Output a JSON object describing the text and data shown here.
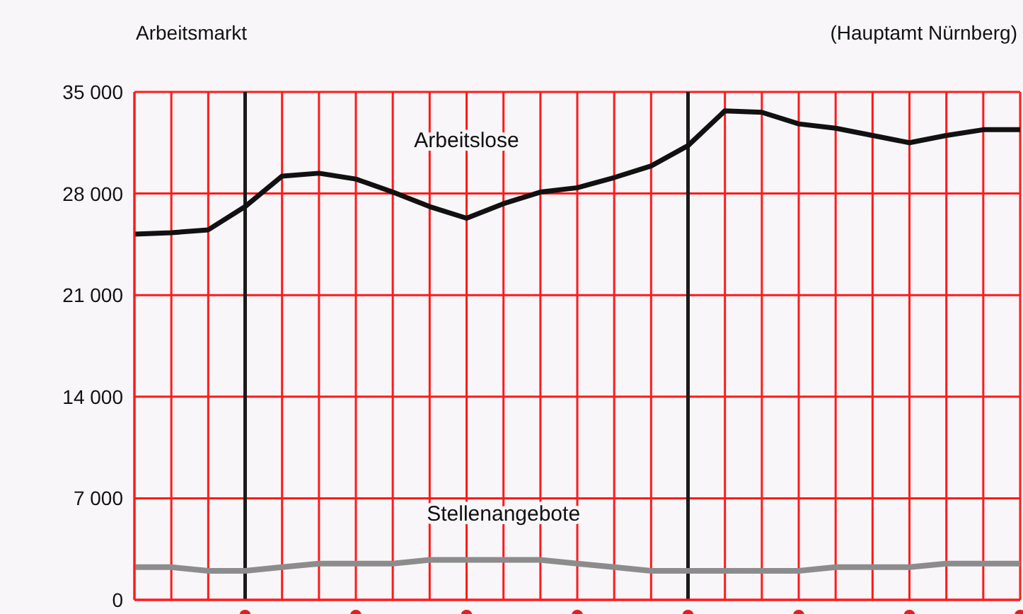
{
  "chart_data": {
    "type": "line",
    "title": "Arbeitsmarkt",
    "subtitle": "(Hauptamt Nürnberg)",
    "categories": [
      null,
      null,
      null,
      null,
      null,
      null,
      null,
      null,
      null,
      null,
      null,
      null,
      null,
      null,
      null,
      null,
      null,
      null,
      null,
      null,
      null,
      null,
      null,
      null,
      null
    ],
    "series": [
      {
        "name": "Arbeitslose",
        "color": "#111111",
        "values": [
          25200,
          25300,
          25500,
          27100,
          29200,
          29400,
          29000,
          28100,
          27100,
          26300,
          27300,
          28100,
          28400,
          29100,
          29900,
          31300,
          33700,
          33600,
          32800,
          32500,
          32000,
          31500,
          32000,
          32400,
          32400
        ]
      },
      {
        "name": "Stellenangebote",
        "color": "#8c8c8c",
        "values": [
          2250,
          2250,
          2000,
          2000,
          2250,
          2500,
          2500,
          2500,
          2750,
          2750,
          2750,
          2750,
          2500,
          2250,
          2000,
          2000,
          2000,
          2000,
          2000,
          2250,
          2250,
          2250,
          2500,
          2500,
          2500
        ]
      }
    ],
    "ylim": [
      0,
      35000
    ],
    "yticks": [
      {
        "value": 0,
        "label": "0"
      },
      {
        "value": 7000,
        "label": "7 000"
      },
      {
        "value": 14000,
        "label": "14 000"
      },
      {
        "value": 21000,
        "label": "21 000"
      },
      {
        "value": 28000,
        "label": "28 000"
      },
      {
        "value": 35000,
        "label": "35 000"
      }
    ],
    "grid": true,
    "marker": "none",
    "line_style": "solid",
    "tick_labels": "y"
  }
}
